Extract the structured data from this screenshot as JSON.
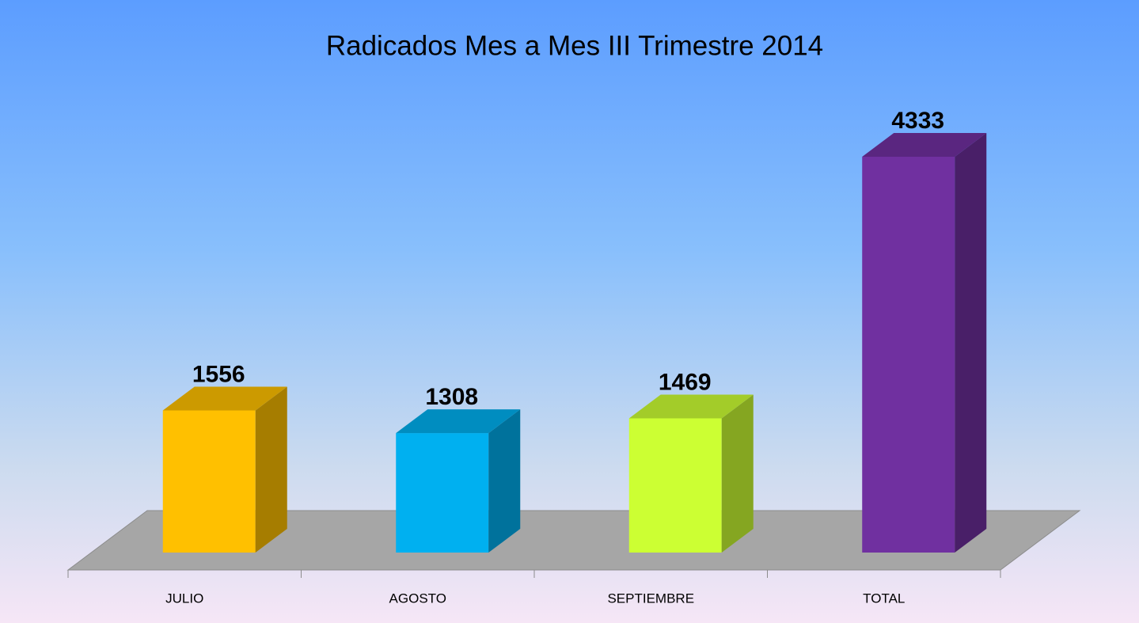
{
  "chart_data": {
    "type": "bar3d",
    "title": "Radicados Mes a Mes III Trimestre 2014",
    "categories": [
      "JULIO",
      "AGOSTO",
      "SEPTIEMBRE",
      "TOTAL"
    ],
    "values": [
      1556,
      1308,
      1469,
      4333
    ],
    "colors": [
      "#FFC000",
      "#00B0F0",
      "#CCFF33",
      "#7030A0"
    ]
  }
}
